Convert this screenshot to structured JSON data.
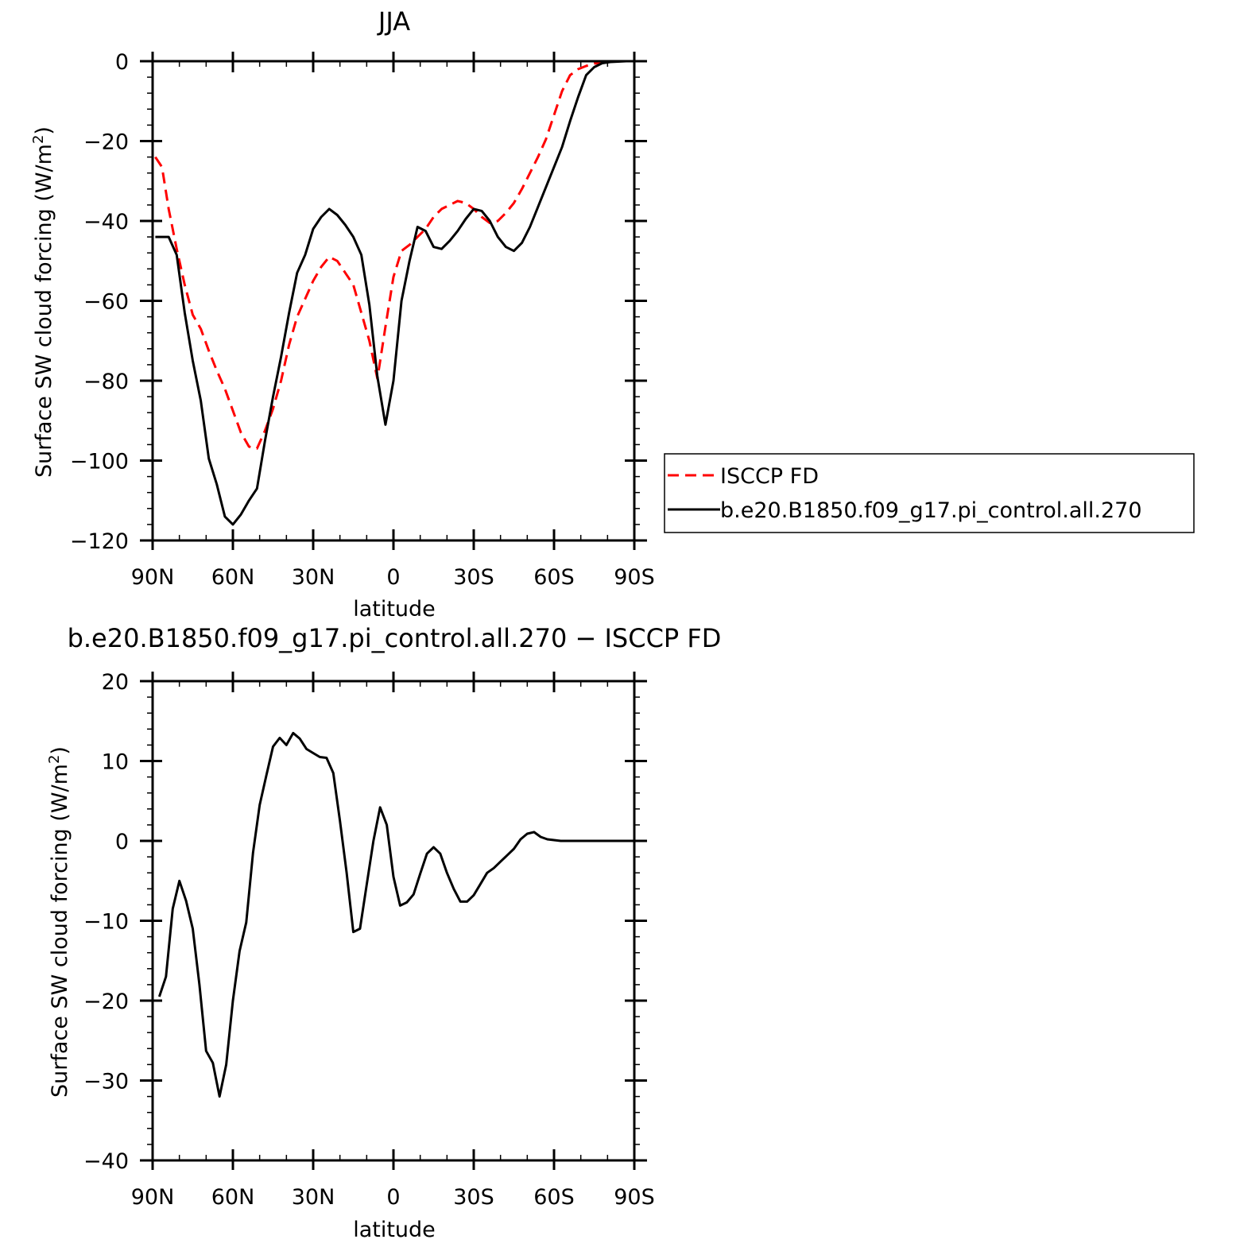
{
  "colors": {
    "obs": "#ff0000",
    "model": "#000000",
    "axes": "#000000"
  },
  "chart_data": [
    {
      "type": "line",
      "title": "JJA",
      "xlabel": "latitude",
      "ylabel": "Surface SW cloud forcing (W/m",
      "ylabel_sup": "2",
      "ylabel_end": ")",
      "xlim": [
        90,
        -90
      ],
      "ylim": [
        -120,
        0
      ],
      "xticks": [
        {
          "value": 90,
          "label": "90N"
        },
        {
          "value": 60,
          "label": "60N"
        },
        {
          "value": 30,
          "label": "30N"
        },
        {
          "value": 0,
          "label": "0"
        },
        {
          "value": -30,
          "label": "30S"
        },
        {
          "value": -60,
          "label": "60S"
        },
        {
          "value": -90,
          "label": "90S"
        }
      ],
      "yticks": [
        {
          "value": 0,
          "label": "0"
        },
        {
          "value": -20,
          "label": "−20"
        },
        {
          "value": -40,
          "label": "−40"
        },
        {
          "value": -60,
          "label": "−60"
        },
        {
          "value": -80,
          "label": "−80"
        },
        {
          "value": -100,
          "label": "−100"
        },
        {
          "value": -120,
          "label": "−120"
        }
      ],
      "legend": {
        "position": "right",
        "entries": [
          {
            "label": "ISCCP FD",
            "series": "ISCCP FD"
          },
          {
            "label": "b.e20.B1850.f09_g17.pi_control.all.270",
            "series": "b.e20.B1850.f09_g17.pi_control.all.270"
          }
        ]
      },
      "series": [
        {
          "name": "ISCCP FD",
          "style": "dashed",
          "x": [
            89,
            86.5,
            84,
            81,
            78,
            75,
            72,
            69,
            66,
            63,
            60,
            57,
            54,
            51,
            48,
            45,
            42,
            39,
            36,
            33,
            30,
            27,
            24,
            21,
            18,
            15,
            12,
            9,
            6,
            3,
            0,
            -3,
            -6,
            -9,
            -12,
            -15,
            -18,
            -21,
            -24,
            -27,
            -30,
            -33,
            -36,
            -39,
            -42,
            -45,
            -48,
            -51,
            -54,
            -57,
            -60,
            -63,
            -66,
            -69,
            -72,
            -75,
            -78,
            -81,
            -84,
            -87,
            -90
          ],
          "y": [
            -24,
            -26.5,
            -37,
            -47,
            -56,
            -63.5,
            -67,
            -72.5,
            -77.5,
            -82,
            -87.5,
            -93,
            -96.5,
            -97,
            -92.5,
            -87,
            -80,
            -71,
            -64,
            -59.5,
            -55,
            -51.5,
            -49,
            -50,
            -53,
            -56,
            -63,
            -70,
            -79.5,
            -66.5,
            -54,
            -47.5,
            -46,
            -44,
            -42,
            -39,
            -37,
            -36,
            -35,
            -35.5,
            -37,
            -39,
            -40.5,
            -40,
            -38,
            -35.5,
            -32,
            -28,
            -24,
            -19.5,
            -13.5,
            -7.5,
            -3.5,
            -2,
            -1.2,
            -0.6,
            -0.3,
            -0.1,
            0,
            0,
            0
          ]
        },
        {
          "name": "b.e20.B1850.f09_g17.pi_control.all.270",
          "style": "solid",
          "x": [
            89,
            86.5,
            84,
            81,
            78,
            75,
            72,
            69,
            66,
            63,
            60,
            57,
            54,
            51,
            48,
            45,
            42,
            39,
            36,
            33,
            30,
            27,
            24,
            21,
            18,
            15,
            12,
            9,
            6,
            3,
            0,
            -3,
            -6,
            -9,
            -12,
            -15,
            -18,
            -21,
            -24,
            -27,
            -30,
            -33,
            -36,
            -39,
            -42,
            -45,
            -48,
            -51,
            -54,
            -57,
            -60,
            -63,
            -66,
            -69,
            -72,
            -75,
            -78,
            -81,
            -84,
            -87,
            -90
          ],
          "y": [
            -44,
            -44,
            -44,
            -48.5,
            -63,
            -75,
            -85,
            -99.5,
            -106,
            -114,
            -116,
            -113.5,
            -110,
            -107,
            -95,
            -84,
            -74,
            -63,
            -53,
            -48.5,
            -42,
            -39,
            -37,
            -38.5,
            -41,
            -44,
            -48.5,
            -61,
            -79,
            -91,
            -80,
            -60,
            -50,
            -41.5,
            -42.5,
            -46.5,
            -47,
            -45,
            -42.5,
            -39.5,
            -37,
            -37.5,
            -40,
            -44,
            -46.5,
            -47.5,
            -45.5,
            -41.5,
            -36.5,
            -31.5,
            -26.5,
            -21.5,
            -15,
            -9,
            -3.5,
            -1.5,
            -0.5,
            -0.2,
            -0.1,
            0,
            0
          ]
        }
      ]
    },
    {
      "type": "line",
      "title": "b.e20.B1850.f09_g17.pi_control.all.270 − ISCCP FD",
      "xlabel": "latitude",
      "ylabel": "Surface SW cloud forcing (W/m",
      "ylabel_sup": "2",
      "ylabel_end": ")",
      "xlim": [
        90,
        -90
      ],
      "ylim": [
        -40,
        20
      ],
      "xticks": [
        {
          "value": 90,
          "label": "90N"
        },
        {
          "value": 60,
          "label": "60N"
        },
        {
          "value": 30,
          "label": "30N"
        },
        {
          "value": 0,
          "label": "0"
        },
        {
          "value": -30,
          "label": "30S"
        },
        {
          "value": -60,
          "label": "60S"
        },
        {
          "value": -90,
          "label": "90S"
        }
      ],
      "yticks": [
        {
          "value": 20,
          "label": "20"
        },
        {
          "value": 10,
          "label": "10"
        },
        {
          "value": 0,
          "label": "0"
        },
        {
          "value": -10,
          "label": "−10"
        },
        {
          "value": -20,
          "label": "−20"
        },
        {
          "value": -30,
          "label": "−30"
        },
        {
          "value": -40,
          "label": "−40"
        }
      ],
      "series": [
        {
          "name": "",
          "style": "solid",
          "x": [
            87.5,
            85,
            82.5,
            80,
            77.5,
            75,
            72.5,
            70,
            67.5,
            65,
            62.5,
            60,
            57.5,
            55,
            52.5,
            50,
            47.5,
            45,
            42.5,
            40,
            37.5,
            35,
            32.5,
            30,
            27.5,
            25,
            22.5,
            20,
            17.5,
            15,
            12.5,
            10,
            7.5,
            5,
            2.5,
            0,
            -2.5,
            -5,
            -7.5,
            -10,
            -12.5,
            -15,
            -17.5,
            -20,
            -22.5,
            -25,
            -27.5,
            -30,
            -32.5,
            -35,
            -37.5,
            -40,
            -42.5,
            -45,
            -47.5,
            -50,
            -52.5,
            -55,
            -57.5,
            -60,
            -62.5,
            -65,
            -67.5,
            -70,
            -72.5,
            -75,
            -77.5,
            -80,
            -82.5,
            -85,
            -87.5
          ],
          "y": [
            -19.5,
            -17,
            -8.5,
            -5,
            -7.5,
            -11,
            -18,
            -26.3,
            -27.8,
            -32,
            -28,
            -20,
            -13.8,
            -10.2,
            -1.5,
            4.5,
            8.2,
            11.8,
            12.9,
            12,
            13.5,
            12.8,
            11.5,
            11,
            10.5,
            10.4,
            8.5,
            2.5,
            -4,
            -11.4,
            -11,
            -5.5,
            0,
            4.2,
            2,
            -4.5,
            -8.1,
            -7.7,
            -6.7,
            -4.1,
            -1.6,
            -0.8,
            -1.6,
            -4,
            -6,
            -7.6,
            -7.6,
            -6.8,
            -5.4,
            -4,
            -3.4,
            -2.6,
            -1.8,
            -1,
            0.2,
            0.9,
            1.1,
            0.5,
            0.2,
            0.1,
            0,
            0,
            0,
            0,
            0,
            0,
            0,
            0,
            0,
            0,
            0
          ]
        }
      ]
    }
  ]
}
